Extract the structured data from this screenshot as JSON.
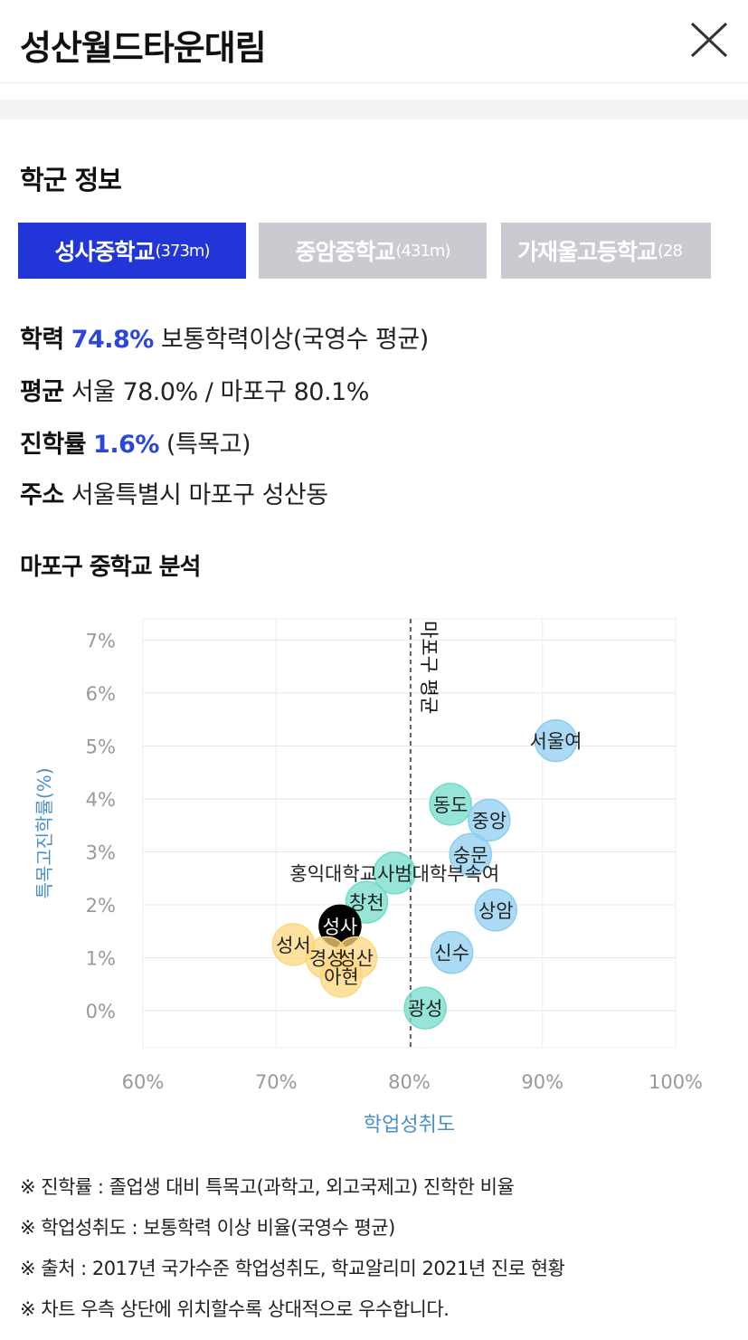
{
  "header": {
    "title": "성산월드타운대림",
    "close_icon": "close-icon"
  },
  "school_info": {
    "section_title": "학군 정보",
    "tabs": [
      {
        "name": "성사중학교",
        "distance": "(373m)",
        "active": true
      },
      {
        "name": "중암중학교",
        "distance": "(431m)",
        "active": false
      },
      {
        "name": "가재울고등학교",
        "distance": "(28",
        "active": false
      }
    ],
    "details": {
      "achievement_label": "학력",
      "achievement_value": "74.8%",
      "achievement_desc": "보통학력이상(국영수 평균)",
      "average_label": "평균",
      "average_value": "서울 78.0% / 마포구 80.1%",
      "advance_label": "진학률",
      "advance_value": "1.6%",
      "advance_desc": "(특목고)",
      "address_label": "주소",
      "address_value": "서울특별시 마포구 성산동"
    }
  },
  "analysis": {
    "title": "마포구 중학교 분석"
  },
  "chart_data": {
    "type": "scatter",
    "xlabel": "학업성취도",
    "ylabel": "특목고진학률(%)",
    "xlim": [
      60,
      100
    ],
    "ylim": [
      -0.7,
      7.4
    ],
    "x_ticks": [
      "60%",
      "70%",
      "80%",
      "90%",
      "100%"
    ],
    "x_tick_values": [
      60,
      70,
      80,
      90,
      100
    ],
    "y_ticks": [
      "0%",
      "1%",
      "2%",
      "3%",
      "4%",
      "5%",
      "6%",
      "7%"
    ],
    "y_tick_values": [
      0,
      1,
      2,
      3,
      4,
      5,
      6,
      7
    ],
    "grid": true,
    "reference_line": {
      "x": 80.1,
      "label": "마포구 평균"
    },
    "colors": {
      "blue": "#8ecdf0",
      "teal": "#74dccb",
      "yellow": "#fdd77d",
      "highlight": "#000000"
    },
    "points": [
      {
        "label": "서울여",
        "x": 91.0,
        "y": 5.1,
        "group": "blue"
      },
      {
        "label": "동도",
        "x": 83.1,
        "y": 3.9,
        "group": "teal"
      },
      {
        "label": "중앙",
        "x": 86.0,
        "y": 3.6,
        "group": "blue"
      },
      {
        "label": "숭문",
        "x": 84.6,
        "y": 2.95,
        "group": "blue"
      },
      {
        "label": "홍익대학교사범대학부속여",
        "x": 78.9,
        "y": 2.6,
        "group": "teal"
      },
      {
        "label": "창천",
        "x": 76.8,
        "y": 2.05,
        "group": "teal"
      },
      {
        "label": "상암",
        "x": 86.5,
        "y": 1.9,
        "group": "blue"
      },
      {
        "label": "성사",
        "x": 74.8,
        "y": 1.6,
        "group": "highlight"
      },
      {
        "label": "성서",
        "x": 71.3,
        "y": 1.25,
        "group": "yellow"
      },
      {
        "label": "경성",
        "x": 73.8,
        "y": 1.0,
        "group": "yellow"
      },
      {
        "label": "성산",
        "x": 76.0,
        "y": 1.0,
        "group": "yellow"
      },
      {
        "label": "신수",
        "x": 83.2,
        "y": 1.1,
        "group": "blue"
      },
      {
        "label": "아현",
        "x": 74.9,
        "y": 0.65,
        "group": "yellow"
      },
      {
        "label": "광성",
        "x": 81.2,
        "y": 0.05,
        "group": "teal"
      }
    ]
  },
  "notes": [
    "※ 진학률 : 졸업생 대비 특목고(과학고, 외고국제고) 진학한 비율",
    "※ 학업성취도 : 보통학력 이상 비율(국영수 평균)",
    "※ 출처 : 2017년 국가수준 학업성취도, 학교알리미 2021년 진로 현황",
    "※ 차트 우측 상단에 위치할수록 상대적으로 우수합니다."
  ]
}
